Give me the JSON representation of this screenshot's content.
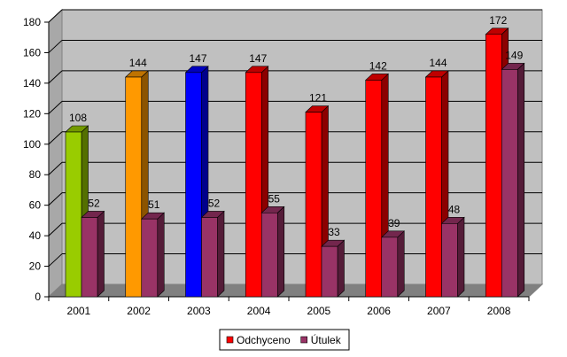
{
  "chart_data": {
    "type": "bar",
    "title": "",
    "xlabel": "",
    "ylabel": "",
    "categories": [
      "2001",
      "2002",
      "2003",
      "2004",
      "2005",
      "2006",
      "2007",
      "2008"
    ],
    "ylim": [
      0,
      180
    ],
    "yticks": [
      0,
      20,
      40,
      60,
      80,
      100,
      120,
      140,
      160,
      180
    ],
    "grid": true,
    "legend_position": "bottom",
    "series": [
      {
        "name": "Odchyceno",
        "color": "#ff0000",
        "values": [
          108,
          144,
          147,
          147,
          121,
          142,
          144,
          172
        ],
        "bar_colors": [
          "#99cc00",
          "#ff9900",
          "#0000ff",
          "#ff0000",
          "#ff0000",
          "#ff0000",
          "#ff0000",
          "#ff0000"
        ]
      },
      {
        "name": "Útulek",
        "color": "#993366",
        "values": [
          52,
          51,
          52,
          55,
          33,
          39,
          48,
          149
        ],
        "bar_colors": [
          "#993366",
          "#993366",
          "#993366",
          "#993366",
          "#993366",
          "#993366",
          "#993366",
          "#993366"
        ]
      }
    ]
  }
}
